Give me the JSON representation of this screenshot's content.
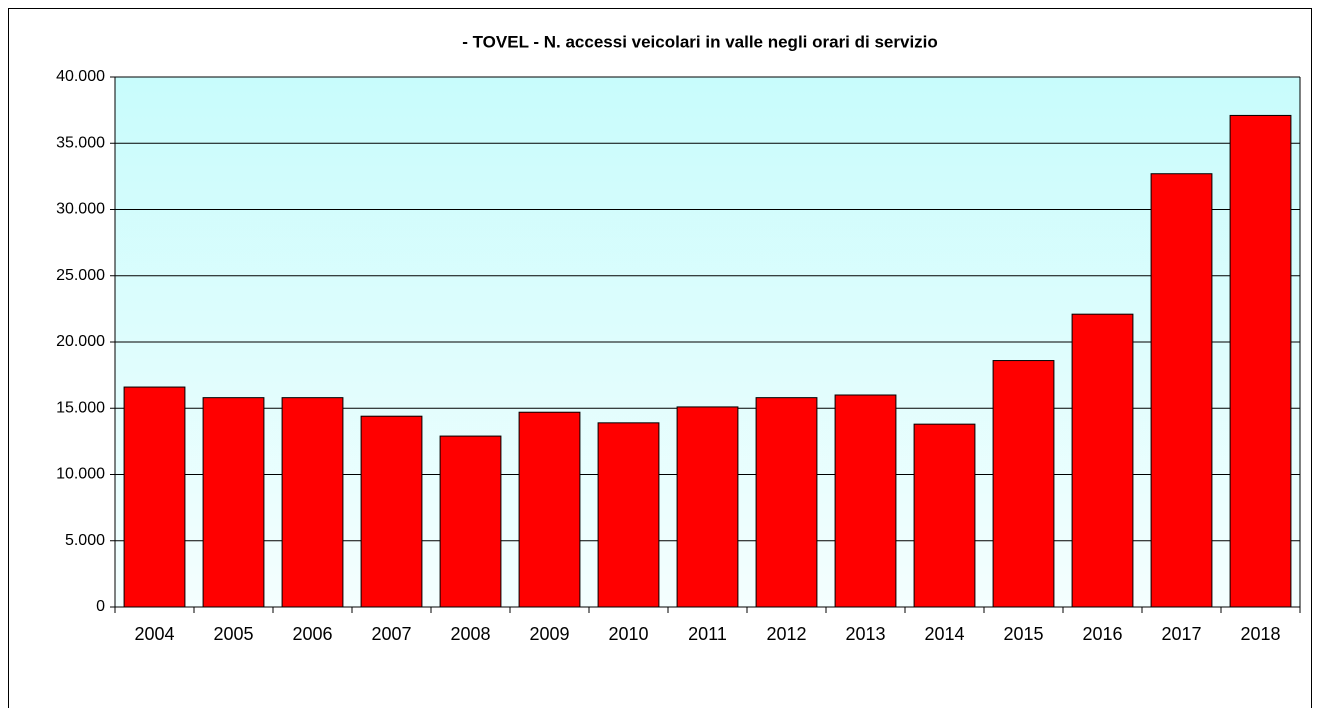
{
  "chart_data": {
    "type": "bar",
    "title": "- TOVEL - N. accessi veicolari in valle negli orari di servizio",
    "categories": [
      "2004",
      "2005",
      "2006",
      "2007",
      "2008",
      "2009",
      "2010",
      "2011",
      "2012",
      "2013",
      "2014",
      "2015",
      "2016",
      "2017",
      "2018"
    ],
    "values": [
      16600,
      15800,
      15800,
      14400,
      12900,
      14700,
      13900,
      15100,
      15800,
      16000,
      13800,
      18600,
      22100,
      32700,
      37100
    ],
    "color": "#ff0000",
    "ylim": [
      0,
      40000
    ],
    "yticks": [
      0,
      {
        "value": 5000,
        "label": "5.000"
      },
      {
        "value": 10000,
        "label": "10.000"
      },
      {
        "value": 15000,
        "label": "15.000"
      },
      {
        "value": 20000,
        "label": "20.000"
      },
      {
        "value": 25000,
        "label": "25.000"
      },
      {
        "value": 30000,
        "label": "30.000"
      },
      {
        "value": 35000,
        "label": "35.000"
      },
      {
        "value": 40000,
        "label": "40.000"
      }
    ],
    "grid": true
  }
}
